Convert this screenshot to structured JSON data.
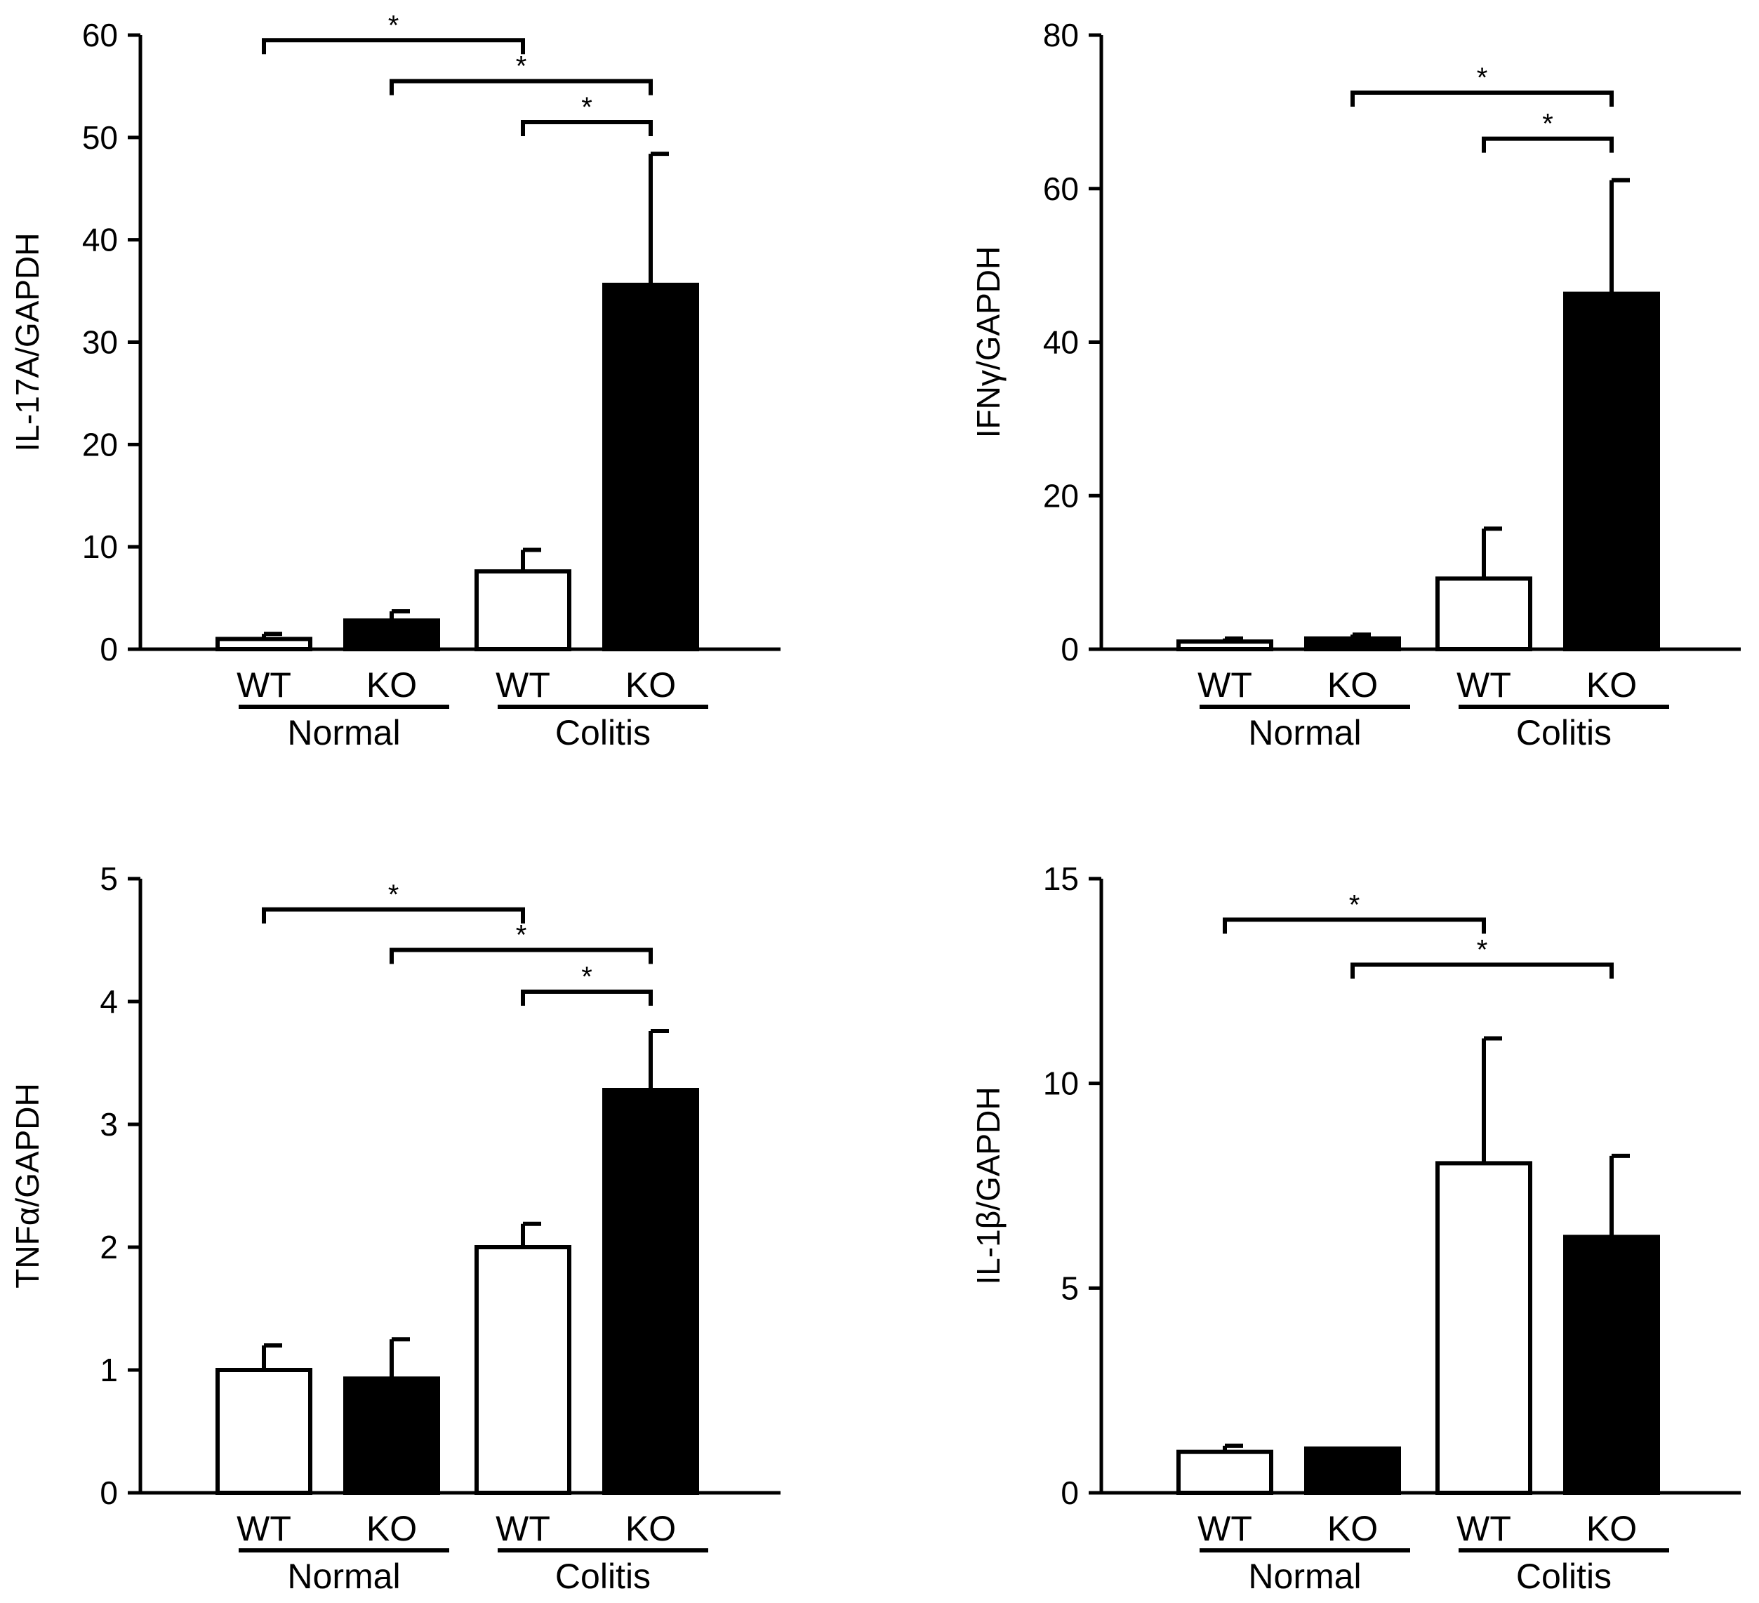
{
  "figure_colors": {
    "axis": "#000000",
    "wt_fill": "#ffffff",
    "ko_fill": "#000000"
  },
  "chart_data": [
    {
      "type": "bar",
      "ylabel": "IL-17A/GAPDH",
      "ylim": [
        0,
        60
      ],
      "yticks": [
        0,
        10,
        20,
        30,
        40,
        50,
        60
      ],
      "categories": [
        "WT",
        "KO",
        "WT",
        "KO"
      ],
      "groups": [
        {
          "label": "Normal",
          "bars": [
            0,
            1
          ]
        },
        {
          "label": "Colitis",
          "bars": [
            2,
            3
          ]
        }
      ],
      "series": [
        {
          "name": "WT",
          "fill": "white",
          "bars": [
            0,
            2
          ]
        },
        {
          "name": "KO",
          "fill": "black",
          "bars": [
            1,
            3
          ]
        }
      ],
      "values": [
        1.0,
        2.8,
        7.6,
        35.6
      ],
      "errors": [
        0.5,
        0.9,
        2.1,
        12.8
      ],
      "significance": [
        {
          "from": 0,
          "to": 2,
          "label": "*",
          "level": 59.5
        },
        {
          "from": 1,
          "to": 3,
          "label": "*",
          "level": 55.5
        },
        {
          "from": 2,
          "to": 3,
          "label": "*",
          "level": 51.5
        }
      ]
    },
    {
      "type": "bar",
      "ylabel": "IFNγ/GAPDH",
      "ylim": [
        0,
        80
      ],
      "yticks": [
        0,
        20,
        40,
        60,
        80
      ],
      "categories": [
        "WT",
        "KO",
        "WT",
        "KO"
      ],
      "groups": [
        {
          "label": "Normal",
          "bars": [
            0,
            1
          ]
        },
        {
          "label": "Colitis",
          "bars": [
            2,
            3
          ]
        }
      ],
      "series": [
        {
          "name": "WT",
          "fill": "white",
          "bars": [
            0,
            2
          ]
        },
        {
          "name": "KO",
          "fill": "black",
          "bars": [
            1,
            3
          ]
        }
      ],
      "values": [
        1.0,
        1.4,
        9.2,
        46.3
      ],
      "errors": [
        0.4,
        0.5,
        6.5,
        14.8
      ],
      "significance": [
        {
          "from": 1,
          "to": 3,
          "label": "*",
          "level": 72.5
        },
        {
          "from": 2,
          "to": 3,
          "label": "*",
          "level": 66.5
        }
      ]
    },
    {
      "type": "bar",
      "ylabel": "TNFα/GAPDH",
      "ylim": [
        0,
        5
      ],
      "yticks": [
        0,
        1,
        2,
        3,
        4,
        5
      ],
      "categories": [
        "WT",
        "KO",
        "WT",
        "KO"
      ],
      "groups": [
        {
          "label": "Normal",
          "bars": [
            0,
            1
          ]
        },
        {
          "label": "Colitis",
          "bars": [
            2,
            3
          ]
        }
      ],
      "series": [
        {
          "name": "WT",
          "fill": "white",
          "bars": [
            0,
            2
          ]
        },
        {
          "name": "KO",
          "fill": "black",
          "bars": [
            1,
            3
          ]
        }
      ],
      "values": [
        1.0,
        0.93,
        2.0,
        3.28
      ],
      "errors": [
        0.2,
        0.32,
        0.19,
        0.48
      ],
      "significance": [
        {
          "from": 0,
          "to": 2,
          "label": "*",
          "level": 4.75
        },
        {
          "from": 1,
          "to": 3,
          "label": "*",
          "level": 4.42
        },
        {
          "from": 2,
          "to": 3,
          "label": "*",
          "level": 4.08
        }
      ]
    },
    {
      "type": "bar",
      "ylabel": "IL-1β/GAPDH",
      "ylim": [
        0,
        15
      ],
      "yticks": [
        0,
        5,
        10,
        15
      ],
      "categories": [
        "WT",
        "KO",
        "WT",
        "KO"
      ],
      "groups": [
        {
          "label": "Normal",
          "bars": [
            0,
            1
          ]
        },
        {
          "label": "Colitis",
          "bars": [
            2,
            3
          ]
        }
      ],
      "series": [
        {
          "name": "WT",
          "fill": "white",
          "bars": [
            0,
            2
          ]
        },
        {
          "name": "KO",
          "fill": "black",
          "bars": [
            1,
            3
          ]
        }
      ],
      "values": [
        1.0,
        1.08,
        8.05,
        6.25
      ],
      "errors": [
        0.15,
        0.0,
        3.05,
        1.98
      ],
      "significance": [
        {
          "from": 0,
          "to": 2,
          "label": "*",
          "level": 14.0
        },
        {
          "from": 1,
          "to": 3,
          "label": "*",
          "level": 12.9
        }
      ]
    }
  ]
}
